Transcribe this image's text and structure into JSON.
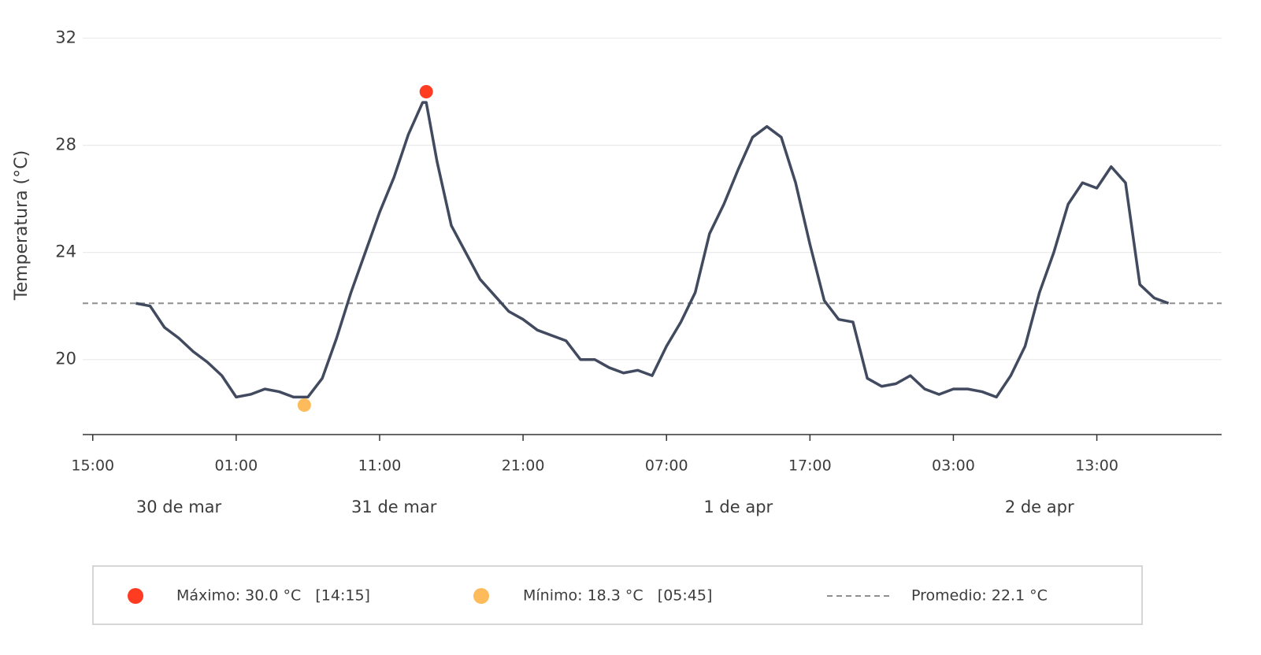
{
  "chart_data": {
    "type": "line",
    "y_label": "Temperatura (°C)",
    "x": [
      18,
      19,
      20,
      21,
      22,
      23,
      24,
      25,
      26,
      27,
      28,
      29,
      30,
      31,
      32,
      33,
      34,
      35,
      36,
      37,
      38,
      38.25,
      39,
      40,
      41,
      42,
      43,
      44,
      45,
      46,
      47,
      48,
      49,
      50,
      51,
      52,
      53,
      54,
      55,
      56,
      57,
      58,
      59,
      60,
      61,
      62,
      63,
      64,
      65,
      66,
      67,
      68,
      69,
      70,
      71,
      72,
      73,
      74,
      75,
      76,
      77,
      78,
      79,
      80,
      81,
      82,
      83,
      84,
      85,
      86,
      87,
      88,
      89,
      90
    ],
    "series": [
      {
        "name": "Temperatura",
        "color": "#414a5e",
        "values": [
          22.1,
          22.0,
          21.2,
          20.8,
          20.3,
          19.9,
          19.4,
          18.6,
          18.7,
          18.9,
          18.8,
          18.6,
          18.6,
          19.3,
          20.8,
          22.5,
          24.0,
          25.5,
          26.8,
          28.4,
          29.6,
          29.6,
          27.4,
          25.0,
          24.0,
          23.0,
          22.4,
          21.8,
          21.5,
          21.1,
          20.9,
          20.7,
          20.0,
          20.0,
          19.7,
          19.5,
          19.6,
          19.4,
          20.5,
          21.4,
          22.5,
          24.7,
          25.8,
          27.1,
          28.3,
          28.7,
          28.3,
          26.6,
          24.3,
          22.2,
          21.5,
          21.4,
          19.3,
          19.0,
          19.1,
          19.4,
          18.9,
          18.7,
          18.9,
          18.9,
          18.8,
          18.6,
          19.4,
          20.5,
          22.5,
          24.0,
          25.8,
          26.6,
          26.4,
          27.2,
          26.6,
          22.8,
          22.3,
          22.1
        ]
      }
    ],
    "xlim": [
      14.3,
      93.7
    ],
    "xticks": [
      {
        "value": 15,
        "label": "15:00"
      },
      {
        "value": 25,
        "label": "01:00"
      },
      {
        "value": 35,
        "label": "11:00"
      },
      {
        "value": 45,
        "label": "21:00"
      },
      {
        "value": 55,
        "label": "07:00"
      },
      {
        "value": 65,
        "label": "17:00"
      },
      {
        "value": 75,
        "label": "03:00"
      },
      {
        "value": 85,
        "label": "13:00"
      }
    ],
    "day_labels": [
      {
        "value": 21,
        "label": "30 de mar"
      },
      {
        "value": 36,
        "label": "31 de mar"
      },
      {
        "value": 60,
        "label": "1 de apr"
      },
      {
        "value": 81,
        "label": "2 de apr"
      }
    ],
    "ylim": [
      17.2,
      32.6
    ],
    "yticks": [
      20,
      24,
      28,
      32
    ],
    "grid": true,
    "max": {
      "x": 38.25,
      "y": 30.0,
      "color": "#ff3b22",
      "label": "Máximo: 30.0 °C   [14:15]"
    },
    "min": {
      "x": 29.75,
      "y": 18.3,
      "color": "#fdbb5b",
      "label": "Mínimo: 18.3 °C   [05:45]"
    },
    "mean": {
      "y": 22.1,
      "color": "#8f8f8f",
      "label": "Promedio: 22.1 °C"
    }
  }
}
